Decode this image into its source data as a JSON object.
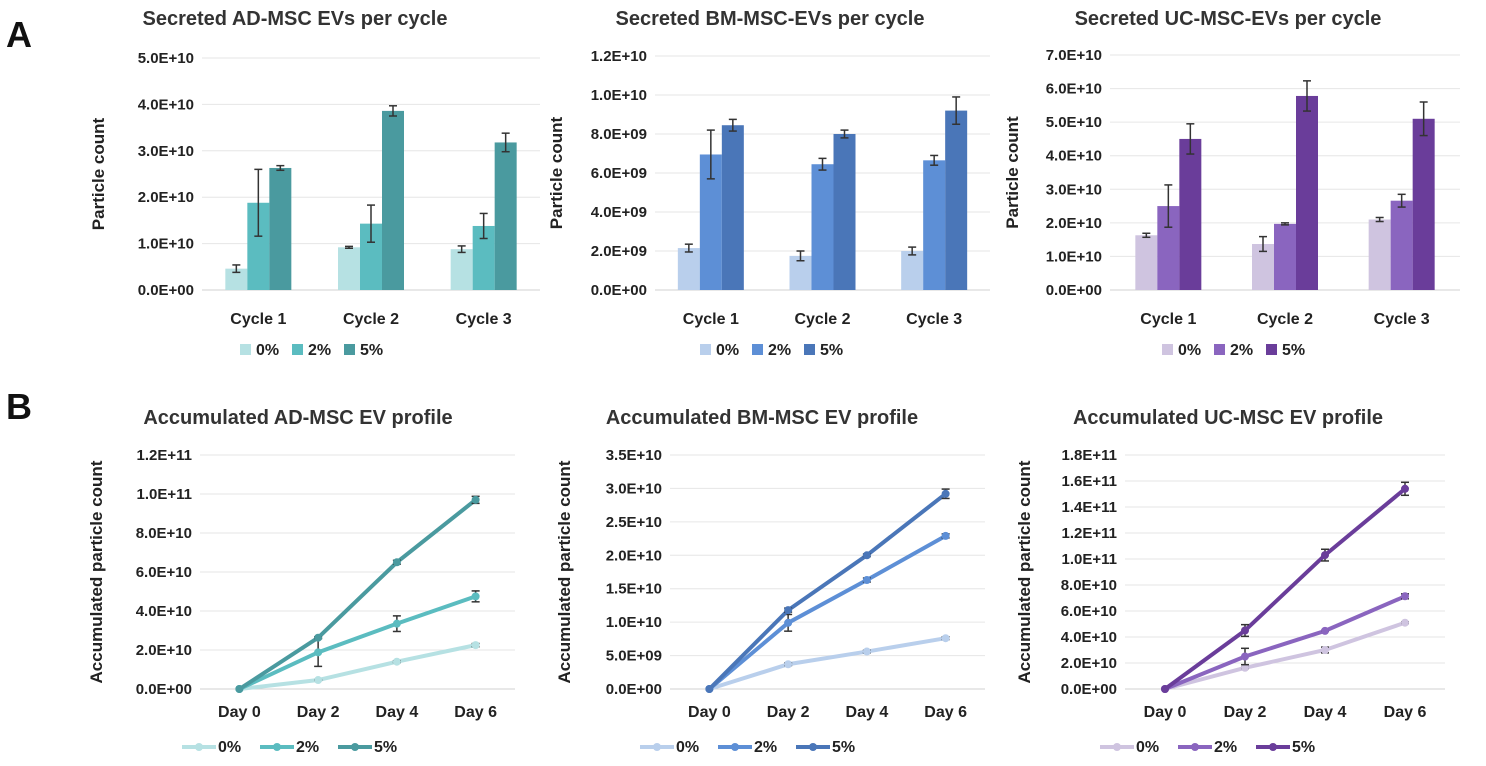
{
  "panel_labels": {
    "a": "A",
    "b": "B"
  },
  "chart_data": [
    {
      "type": "bar",
      "title": "Secreted AD-MSC EVs per cycle",
      "ylabel": "Particle count",
      "categories": [
        "Cycle 1",
        "Cycle 2",
        "Cycle 3"
      ],
      "ylim": [
        0,
        50000000000.0
      ],
      "yticks": [
        0,
        10000000000.0,
        20000000000.0,
        30000000000.0,
        40000000000.0,
        50000000000.0
      ],
      "ytick_labels": [
        "0.0E+00",
        "1.0E+10",
        "2.0E+10",
        "3.0E+10",
        "4.0E+10",
        "5.0E+10"
      ],
      "legend_position": "bottom",
      "series": [
        {
          "name": "0%",
          "color": "#b6e1e3",
          "values": [
            4600000000.0,
            9200000000.0,
            8800000000.0
          ],
          "errors": [
            800000000.0,
            200000000.0,
            700000000.0
          ]
        },
        {
          "name": "2%",
          "color": "#5bbcc0",
          "values": [
            18800000000.0,
            14300000000.0,
            13800000000.0
          ],
          "errors": [
            7200000000.0,
            4000000000.0,
            2700000000.0
          ]
        },
        {
          "name": "5%",
          "color": "#4a9a9f",
          "values": [
            26300000000.0,
            38600000000.0,
            31800000000.0
          ],
          "errors": [
            500000000.0,
            1100000000.0,
            2000000000.0
          ]
        }
      ]
    },
    {
      "type": "bar",
      "title": "Secreted BM-MSC-EVs per cycle",
      "ylabel": "Particle count",
      "categories": [
        "Cycle 1",
        "Cycle 2",
        "Cycle 3"
      ],
      "ylim": [
        0,
        12000000000.0
      ],
      "yticks": [
        0,
        2000000000.0,
        4000000000.0,
        6000000000.0,
        8000000000.0,
        10000000000.0,
        12000000000.0
      ],
      "ytick_labels": [
        "0.0E+00",
        "2.0E+09",
        "4.0E+09",
        "6.0E+09",
        "8.0E+09",
        "1.0E+10",
        "1.2E+10"
      ],
      "legend_position": "bottom",
      "series": [
        {
          "name": "0%",
          "color": "#b9cfec",
          "values": [
            2150000000.0,
            1750000000.0,
            2000000000.0
          ],
          "errors": [
            200000000.0,
            250000000.0,
            200000000.0
          ]
        },
        {
          "name": "2%",
          "color": "#5d8fd6",
          "values": [
            6950000000.0,
            6450000000.0,
            6650000000.0
          ],
          "errors": [
            1250000000.0,
            300000000.0,
            250000000.0
          ]
        },
        {
          "name": "5%",
          "color": "#4a76b8",
          "values": [
            8450000000.0,
            8000000000.0,
            9200000000.0
          ],
          "errors": [
            300000000.0,
            200000000.0,
            700000000.0
          ]
        }
      ]
    },
    {
      "type": "bar",
      "title": "Secreted UC-MSC-EVs per cycle",
      "ylabel": "Particle count",
      "categories": [
        "Cycle 1",
        "Cycle 2",
        "Cycle 3"
      ],
      "ylim": [
        0,
        70000000000.0
      ],
      "yticks": [
        0,
        10000000000.0,
        20000000000.0,
        30000000000.0,
        40000000000.0,
        50000000000.0,
        60000000000.0,
        70000000000.0
      ],
      "ytick_labels": [
        "0.0E+00",
        "1.0E+10",
        "2.0E+10",
        "3.0E+10",
        "4.0E+10",
        "5.0E+10",
        "6.0E+10",
        "7.0E+10"
      ],
      "legend_position": "bottom",
      "series": [
        {
          "name": "0%",
          "color": "#cfc4e0",
          "values": [
            16300000000.0,
            13700000000.0,
            21000000000.0
          ],
          "errors": [
            600000000.0,
            2200000000.0,
            600000000.0
          ]
        },
        {
          "name": "2%",
          "color": "#8a65bf",
          "values": [
            25000000000.0,
            19700000000.0,
            26600000000.0
          ],
          "errors": [
            6300000000.0,
            300000000.0,
            1900000000.0
          ]
        },
        {
          "name": "5%",
          "color": "#6a3d9a",
          "values": [
            45000000000.0,
            57800000000.0,
            51000000000.0
          ],
          "errors": [
            4500000000.0,
            4500000000.0,
            5000000000.0
          ]
        }
      ]
    },
    {
      "type": "line",
      "title": "Accumulated AD-MSC EV profile",
      "ylabel": "Accumulated particle count",
      "x": [
        "Day 0",
        "Day 2",
        "Day 4",
        "Day 6"
      ],
      "ylim": [
        0,
        120000000000.0
      ],
      "yticks": [
        0,
        20000000000.0,
        40000000000.0,
        60000000000.0,
        80000000000.0,
        100000000000.0,
        120000000000.0
      ],
      "ytick_labels": [
        "0.0E+00",
        "2.0E+10",
        "4.0E+10",
        "6.0E+10",
        "8.0E+10",
        "1.0E+11",
        "1.2E+11"
      ],
      "legend_position": "bottom",
      "series": [
        {
          "name": "0%",
          "color": "#b6e1e3",
          "values": [
            0,
            4600000000.0,
            14000000000.0,
            22500000000.0
          ],
          "errors": [
            0,
            200000000.0,
            500000000.0,
            800000000.0
          ]
        },
        {
          "name": "2%",
          "color": "#5bbcc0",
          "values": [
            0,
            18800000000.0,
            33500000000.0,
            47500000000.0
          ],
          "errors": [
            0,
            7200000000.0,
            4000000000.0,
            2800000000.0
          ]
        },
        {
          "name": "5%",
          "color": "#4a9a9f",
          "values": [
            0,
            26300000000.0,
            65000000000.0,
            97000000000.0
          ],
          "errors": [
            0,
            500000000.0,
            1000000000.0,
            1800000000.0
          ]
        }
      ]
    },
    {
      "type": "line",
      "title": "Accumulated BM-MSC EV profile",
      "ylabel": "Accumulated particle count",
      "x": [
        "Day 0",
        "Day 2",
        "Day 4",
        "Day 6"
      ],
      "ylim": [
        0,
        35000000000.0
      ],
      "yticks": [
        0,
        5000000000.0,
        10000000000.0,
        15000000000.0,
        20000000000.0,
        25000000000.0,
        30000000000.0,
        35000000000.0
      ],
      "ytick_labels": [
        "0.0E+00",
        "5.0E+09",
        "1.0E+10",
        "1.5E+10",
        "2.0E+10",
        "2.5E+10",
        "3.0E+10",
        "3.5E+10"
      ],
      "legend_position": "bottom",
      "series": [
        {
          "name": "0%",
          "color": "#b9cfec",
          "values": [
            0,
            3700000000.0,
            5600000000.0,
            7600000000.0
          ],
          "errors": [
            0,
            200000000.0,
            200000000.0,
            200000000.0
          ]
        },
        {
          "name": "2%",
          "color": "#5d8fd6",
          "values": [
            0,
            9900000000.0,
            16300000000.0,
            22900000000.0
          ],
          "errors": [
            0,
            1250000000.0,
            300000000.0,
            300000000.0
          ]
        },
        {
          "name": "5%",
          "color": "#4a76b8",
          "values": [
            0,
            11800000000.0,
            20000000000.0,
            29200000000.0
          ],
          "errors": [
            0,
            300000000.0,
            200000000.0,
            700000000.0
          ]
        }
      ]
    },
    {
      "type": "line",
      "title": "Accumulated UC-MSC EV profile",
      "ylabel": "Accumulated particle count",
      "x": [
        "Day 0",
        "Day 2",
        "Day 4",
        "Day 6"
      ],
      "ylim": [
        0,
        180000000000.0
      ],
      "yticks": [
        0,
        20000000000.0,
        40000000000.0,
        60000000000.0,
        80000000000.0,
        100000000000.0,
        120000000000.0,
        140000000000.0,
        160000000000.0,
        180000000000.0
      ],
      "ytick_labels": [
        "0.0E+00",
        "2.0E+10",
        "4.0E+10",
        "6.0E+10",
        "8.0E+10",
        "1.0E+11",
        "1.2E+11",
        "1.4E+11",
        "1.6E+11",
        "1.8E+11"
      ],
      "legend_position": "bottom",
      "series": [
        {
          "name": "0%",
          "color": "#cfc4e0",
          "values": [
            0,
            16300000000.0,
            30000000000.0,
            51000000000.0
          ],
          "errors": [
            0,
            600000000.0,
            2200000000.0,
            600000000.0
          ]
        },
        {
          "name": "2%",
          "color": "#8a65bf",
          "values": [
            0,
            25000000000.0,
            44700000000.0,
            71300000000.0
          ],
          "errors": [
            0,
            6300000000.0,
            300000000.0,
            1900000000.0
          ]
        },
        {
          "name": "5%",
          "color": "#6a3d9a",
          "values": [
            0,
            45000000000.0,
            103000000000.0,
            154000000000.0
          ],
          "errors": [
            0,
            4500000000.0,
            4500000000.0,
            5000000000.0
          ]
        }
      ]
    }
  ]
}
